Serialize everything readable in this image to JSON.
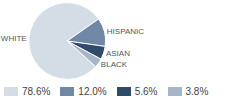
{
  "chart_data": {
    "type": "pie",
    "categories": [
      "WHITE",
      "HISPANIC",
      "ASIAN",
      "BLACK"
    ],
    "values": [
      78.6,
      12.0,
      5.6,
      3.8
    ],
    "value_labels": [
      "78.6%",
      "12.0%",
      "5.6%",
      "3.8%"
    ],
    "colors": [
      "#d4dce6",
      "#7088a6",
      "#2e4b6b",
      "#a6b5c8"
    ]
  }
}
